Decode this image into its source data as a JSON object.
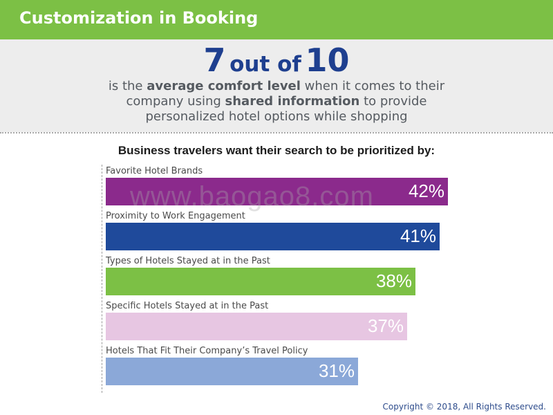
{
  "header": {
    "title": "Customization in Booking"
  },
  "stat": {
    "number": "7",
    "connector": "out of",
    "total": "10",
    "line1_pre": "is the ",
    "line1_em": "average comfort level",
    "line1_post": " when it comes to their",
    "line2_pre": "company using ",
    "line2_em": "shared information",
    "line2_post": " to provide",
    "line3": "personalized hotel options while shopping"
  },
  "watermark": "www.baogao8.com",
  "footer": {
    "copyright": "Copyright © 2018, All Rights Reserved."
  },
  "chart_data": {
    "type": "bar",
    "orientation": "horizontal",
    "title": "Business travelers want their search to be prioritized by:",
    "categories": [
      "Favorite Hotel Brands",
      "Proximity to Work Engagement",
      "Types of Hotels Stayed at in the Past",
      "Specific Hotels Stayed at in the Past",
      "Hotels That Fit Their Company’s Travel Policy"
    ],
    "values": [
      42,
      41,
      38,
      37,
      31
    ],
    "value_labels": [
      "42%",
      "41%",
      "38%",
      "37%",
      "31%"
    ],
    "colors": [
      "#8b2a8c",
      "#1f4a9b",
      "#7cc045",
      "#e7c6e2",
      "#8ba8d8"
    ],
    "unit": "%",
    "grid": false,
    "legend": "none"
  }
}
